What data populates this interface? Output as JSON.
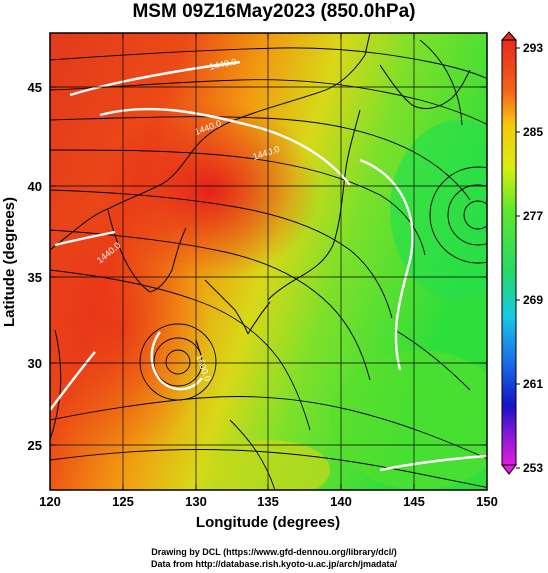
{
  "title": "MSM 09Z16May2023 (850.0hPa)",
  "xaxis": {
    "label": "Longitude (degrees)",
    "ticks": [
      "120",
      "125",
      "130",
      "135",
      "140",
      "145",
      "150"
    ],
    "range": [
      120,
      150
    ]
  },
  "yaxis": {
    "label": "Latitude  (degrees)",
    "ticks": [
      "25",
      "30",
      "35",
      "40",
      "45"
    ],
    "range": [
      22.4,
      47.6
    ]
  },
  "colorbar": {
    "labels": [
      "293",
      "285",
      "277",
      "269",
      "261",
      "253"
    ],
    "range": [
      253,
      293
    ],
    "units": ""
  },
  "contour_labels": [
    "1440.0",
    "1440.0",
    "1440.0",
    "1440.0",
    "1500.0"
  ],
  "credits": {
    "line1": "Drawing by DCL (https://www.gfd-dennou.org/library/dcl/)",
    "line2": "Data from http://database.rish.kyoto-u.ac.jp/arch/jmadata/"
  },
  "colors": {
    "warm": "#e8321e",
    "cool": "#2ee62e",
    "frame": "#000000",
    "contour": "#ffffff"
  }
}
